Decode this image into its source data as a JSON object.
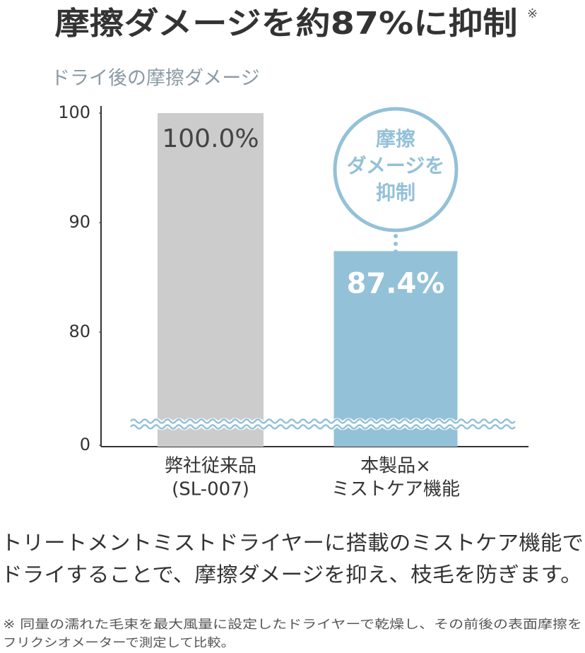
{
  "chart_data": {
    "type": "bar",
    "title": "摩擦ダメージを約87%に抑制",
    "title_note": "※",
    "subtitle": "ドライ後の摩擦ダメージ",
    "categories": [
      [
        "弊社従来品",
        "(SL-007)"
      ],
      [
        "本製品×",
        "ミストケア機能"
      ]
    ],
    "values": [
      100.0,
      87.4
    ],
    "value_labels": [
      "100.0%",
      "87.4%"
    ],
    "colors": [
      "#cccccc",
      "#93c1d8"
    ],
    "ylim": [
      0,
      100
    ],
    "yticks": [
      0,
      80,
      90,
      100
    ],
    "axis_break": [
      0,
      80
    ],
    "annotation": [
      "摩擦",
      "ダメージを",
      "抑制"
    ],
    "description": [
      "トリートメントミストドライヤーに搭載のミストケア機能で",
      "ドライすることで、摩擦ダメージを抑え、枝毛を防ぎます。"
    ],
    "footnote": [
      "※ 同量の濡れた毛束を最大風量に設定したドライヤーで乾燥し、その前後の表面摩擦を",
      "フリクシオメーターで測定して比較。"
    ]
  }
}
